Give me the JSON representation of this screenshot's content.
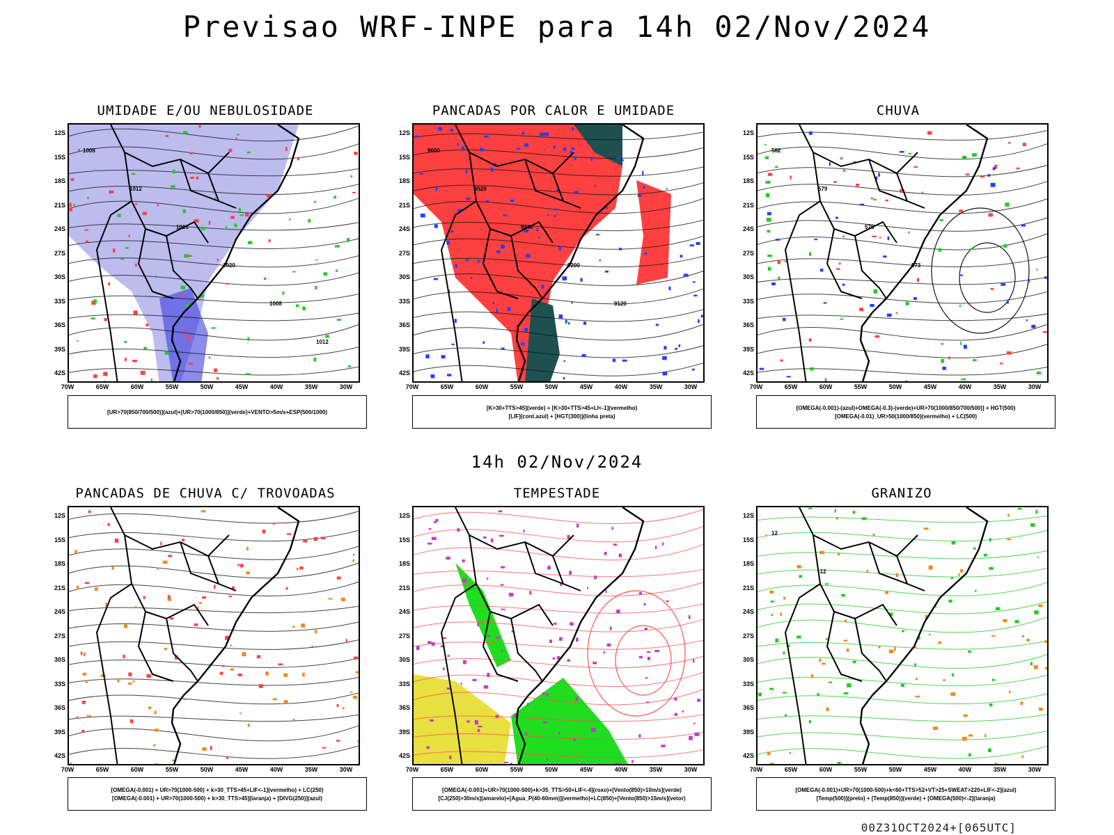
{
  "title": "Previsao WRF-INPE  para 14h 02/Nov/2024",
  "mid_date": "14h 02/Nov/2024",
  "footer": "00Z31OCT2024+[065UTC]",
  "lat_ticks": [
    "12S",
    "15S",
    "18S",
    "21S",
    "24S",
    "27S",
    "30S",
    "33S",
    "36S",
    "39S",
    "42S"
  ],
  "lon_ticks": [
    "70W",
    "65W",
    "60W",
    "55W",
    "50W",
    "45W",
    "40W",
    "35W",
    "30W"
  ],
  "panels": [
    {
      "title": "UMIDADE E/OU NEBULOSIDADE",
      "legend": [
        "[UR>70(850/700/500)](azul)+[UR>70(1000/850)](verde)+VENTO>5m/s+ESP(500/1000)"
      ],
      "contour_labels": [
        "1008",
        "1012",
        "1016",
        "1020",
        "1008",
        "1012"
      ]
    },
    {
      "title": "PANCADAS POR CALOR E UMIDADE",
      "legend": [
        "[K>30+TTS>45](verde) + [K>30+TTS>45+LI<-1](vermelho)",
        "[LIF](cont.azul) + [HGT(300)](linha preta)"
      ],
      "contour_labels": [
        "9600",
        "9520",
        "9440",
        "9200",
        "9120"
      ]
    },
    {
      "title": "CHUVA",
      "legend": [
        "[OMEGA(-0.001)-(azul)+OMEGA(-0.3)-(verde)+UR>70(1000/850/700/500)] + HGT(500)",
        "[OMEGA(-0.01)_UR>50(1000/850)(vermelho) + LC(500)"
      ],
      "contour_labels": [
        "582",
        "579",
        "576",
        "573"
      ]
    },
    {
      "title": "PANCADAS DE CHUVA C/ TROVOADAS",
      "legend": [
        "[OMEGA(-0.001) + UR>70(1000-500) + k>30_TTS>45+LIF<-1](vermelho) + LC(250)",
        "[OMEGA(-0.001) + UR>70(1000-500) + k>30_TTS>45](laranja) + [DIVG(250)](azul)"
      ],
      "contour_labels": []
    },
    {
      "title": "TEMPESTADE",
      "legend": [
        "[OMEGA(-0.001)+UR>70(1000-500)+k>35_TTS>50+LIF<-4](roxo)+[Vento(850)>10m/s](verde)",
        "[CJ(250)>30m/s](amarelo)+[Agua_P(40-60mm)](vermelho)+LC(850)+[Vento(850)>15m/s](vetor)"
      ],
      "contour_labels": []
    },
    {
      "title": "GRANIZO",
      "legend": [
        "[OMEGA(-0.001)+UR>70(1000-500)+k<60+TTS>52+VT>25+SWEAT>220+LIF<-2](azul)",
        "[Temp(500)](preto) + [Temp(850)](verde) + [OMEGA(500)<-2](laranja)"
      ],
      "contour_labels": [
        "12",
        "-12"
      ]
    }
  ],
  "colors": {
    "blue_shade": "#b0b0ec",
    "green": "#22cc22",
    "red": "#ff4040",
    "teal": "#1e5050",
    "yellow": "#e8e040",
    "orange": "#f08a20",
    "purple": "#c040c0",
    "blue": "#2040ff"
  }
}
